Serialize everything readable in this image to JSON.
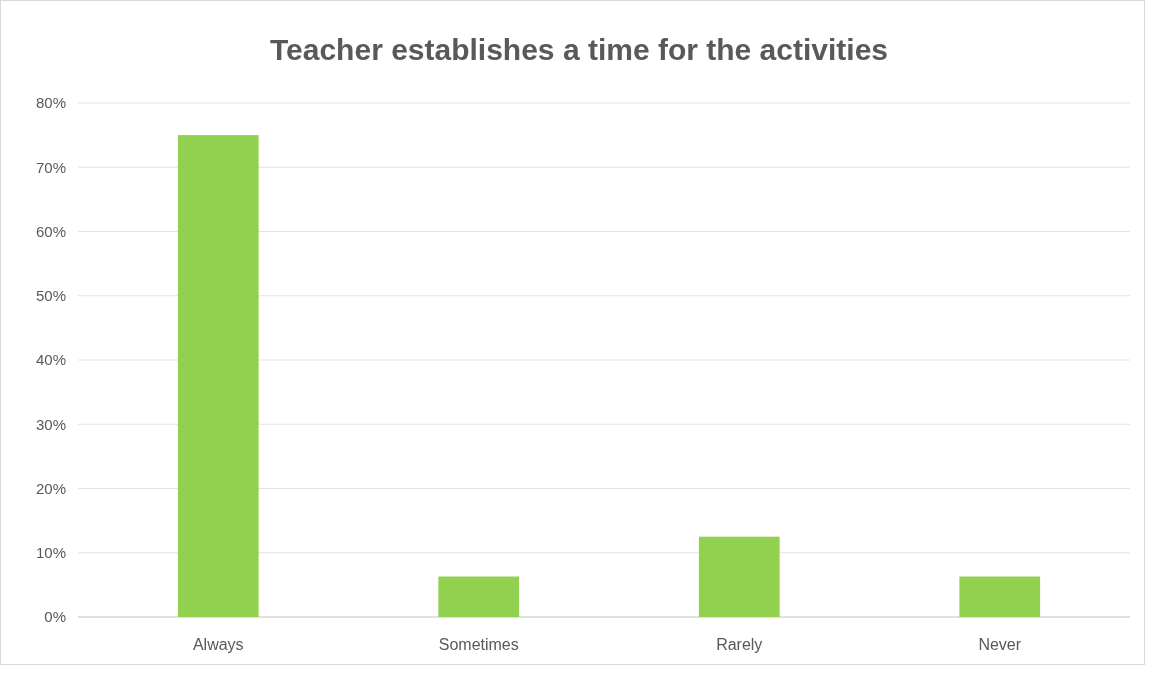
{
  "chart_data": {
    "type": "bar",
    "title": "Teacher establishes a time for the activities",
    "categories": [
      "Always",
      "Sometimes",
      "Rarely",
      "Never"
    ],
    "values": [
      75,
      6.3,
      12.5,
      6.3
    ],
    "color": "#92d050",
    "ylim": [
      0,
      80
    ],
    "yticks": [
      {
        "value": 0,
        "label": "0%"
      },
      {
        "value": 10,
        "label": "10%"
      },
      {
        "value": 20,
        "label": "20%"
      },
      {
        "value": 30,
        "label": "30%"
      },
      {
        "value": 40,
        "label": "40%"
      },
      {
        "value": 50,
        "label": "50%"
      },
      {
        "value": 60,
        "label": "60%"
      },
      {
        "value": 70,
        "label": "70%"
      },
      {
        "value": 80,
        "label": "80%"
      }
    ],
    "grid": "y"
  }
}
